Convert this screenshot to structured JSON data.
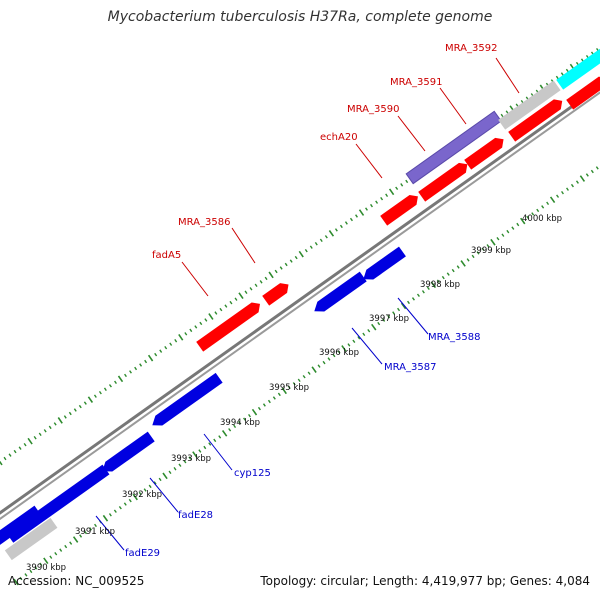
{
  "title": "Mycobacterium tuberculosis H37Ra, complete genome",
  "footer": {
    "accession": "Accession: NC_009525",
    "summary": "Topology: circular; Length: 4,419,977 bp; Genes: 4,084"
  },
  "colors": {
    "forward_gene": "#ff0000",
    "reverse_gene": "#0000e0",
    "other_gene": "#c8c8c8",
    "rna_gene": "#00ffff",
    "highlight_gene": "#7a66cc",
    "backbone": "#888888",
    "tick": "#2e8b2e",
    "forward_label": "#cc0000",
    "reverse_label": "#0000cc"
  },
  "scale_labels": [
    "3990 kbp",
    "3991 kbp",
    "3992 kbp",
    "3993 kbp",
    "3994 kbp",
    "3995 kbp",
    "3996 kbp",
    "3997 kbp",
    "3998 kbp",
    "3999 kbp",
    "4000 kbp"
  ],
  "labels": [
    {
      "text": "MRA_3592",
      "strand": "forward"
    },
    {
      "text": "MRA_3591",
      "strand": "forward"
    },
    {
      "text": "MRA_3590",
      "strand": "forward"
    },
    {
      "text": "echA20",
      "strand": "forward"
    },
    {
      "text": "MRA_3586",
      "strand": "forward"
    },
    {
      "text": "fadA5",
      "strand": "forward"
    },
    {
      "text": "MRA_3588",
      "strand": "reverse"
    },
    {
      "text": "MRA_3587",
      "strand": "reverse"
    },
    {
      "text": "cyp125",
      "strand": "reverse"
    },
    {
      "text": "fadE28",
      "strand": "reverse"
    },
    {
      "text": "fadE29",
      "strand": "reverse"
    }
  ]
}
